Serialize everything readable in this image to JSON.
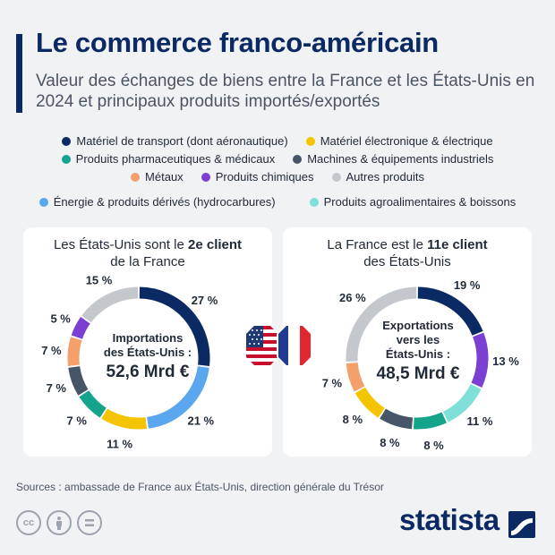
{
  "title": "Le commerce franco-américain",
  "subtitle": "Valeur des échanges de biens entre la France et les États-Unis en 2024 et principaux produits importés/exportés",
  "legend": [
    {
      "label": "Matériel de transport (dont aéronautique)",
      "color": "#0b2a63"
    },
    {
      "label": "Matériel électronique & électrique",
      "color": "#f5c400"
    },
    {
      "label": "Produits pharmaceutiques & médicaux",
      "color": "#14a38b"
    },
    {
      "label": "Machines & équipements industriels",
      "color": "#475569"
    },
    {
      "label": "Métaux",
      "color": "#f4a06a"
    },
    {
      "label": "Produits chimiques",
      "color": "#7b3fd1"
    },
    {
      "label": "Autres produits",
      "color": "#c4c7cc"
    },
    {
      "label": "Énergie & produits dérivés (hydrocarbures)",
      "color": "#5aa7f0"
    },
    {
      "label": "Produits agroalimentaires & boissons",
      "color": "#7ee0d8"
    }
  ],
  "left_card": {
    "head_prefix": "Les États-Unis sont le ",
    "head_bold": "2e client",
    "head_suffix": "de la France",
    "center_line1": "Importations",
    "center_line2": "des États-Unis :",
    "center_value": "52,6 Mrd €"
  },
  "right_card": {
    "head_prefix": "La France est le ",
    "head_bold": "11e client",
    "head_suffix": "des États-Unis",
    "center_line1": "Exportations",
    "center_line2": "vers les",
    "center_line3": "États-Unis :",
    "center_value": "48,5 Mrd €"
  },
  "chart_data": [
    {
      "type": "pie",
      "title": "Importations des États-Unis : 52,6 Mrd €",
      "categories": [
        "Matériel de transport (dont aéronautique)",
        "Énergie & produits dérivés (hydrocarbures)",
        "Matériel électronique & électrique",
        "Produits pharmaceutiques & médicaux",
        "Machines & équipements industriels",
        "Métaux",
        "Produits chimiques",
        "Autres produits"
      ],
      "values": [
        27,
        21,
        11,
        7,
        7,
        7,
        5,
        15
      ],
      "labels": [
        "27 %",
        "21 %",
        "11 %",
        "7 %",
        "7 %",
        "7 %",
        "5 %",
        "15 %"
      ],
      "colors": [
        "#0b2a63",
        "#5aa7f0",
        "#f5c400",
        "#14a38b",
        "#475569",
        "#f4a06a",
        "#7b3fd1",
        "#c4c7cc"
      ]
    },
    {
      "type": "pie",
      "title": "Exportations vers les États-Unis : 48,5 Mrd €",
      "categories": [
        "Matériel de transport (dont aéronautique)",
        "Produits chimiques",
        "Produits agroalimentaires & boissons",
        "Produits pharmaceutiques & médicaux",
        "Machines & équipements industriels",
        "Matériel électronique & électrique",
        "Métaux",
        "Autres produits"
      ],
      "values": [
        19,
        13,
        11,
        8,
        8,
        8,
        7,
        26
      ],
      "labels": [
        "19 %",
        "13 %",
        "11 %",
        "8 %",
        "8 %",
        "8 %",
        "7 %",
        "26 %"
      ],
      "colors": [
        "#0b2a63",
        "#7b3fd1",
        "#7ee0d8",
        "#14a38b",
        "#475569",
        "#f5c400",
        "#f4a06a",
        "#c4c7cc"
      ]
    }
  ],
  "source": "Sources : ambassade de France aux États-Unis, direction générale du Trésor",
  "icons": [
    "creative-commons-icon",
    "attribution-icon",
    "no-derivatives-icon"
  ],
  "brand": "statista"
}
